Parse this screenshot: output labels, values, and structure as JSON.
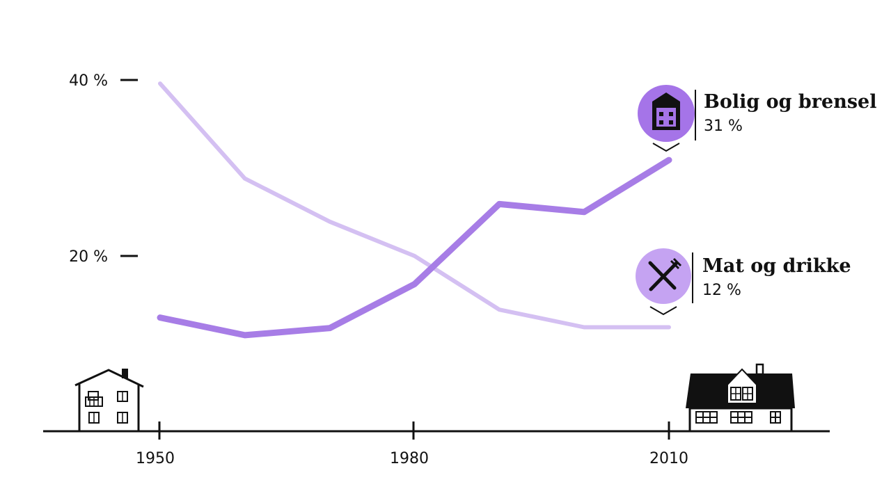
{
  "chart_data": {
    "type": "line",
    "x": [
      1950,
      1960,
      1970,
      1980,
      1990,
      2000,
      2010
    ],
    "xticks": [
      1950,
      1980,
      2010
    ],
    "xtick_labels": [
      "1950",
      "1980",
      "2010"
    ],
    "yticks": [
      20,
      40
    ],
    "ytick_labels": [
      "20 %",
      "40 %"
    ],
    "ylim": [
      0,
      40
    ],
    "series": [
      {
        "name": "Bolig og brensel",
        "value_label": "31 %",
        "values": [
          13.0,
          11.0,
          11.8,
          16.8,
          25.9,
          25.0,
          30.9
        ],
        "color": "#a77de6",
        "icon": "building-icon"
      },
      {
        "name": "Mat og drikke",
        "value_label": "12 %",
        "values": [
          39.6,
          28.8,
          23.9,
          20.0,
          13.9,
          11.9,
          11.9
        ],
        "color": "#d4c0f2",
        "icon": "fork-knife-icon"
      }
    ],
    "grid": false,
    "legend": "inline-right"
  },
  "colors": {
    "series_primary": "#a77de6",
    "series_secondary": "#d4c0f2",
    "badge_primary": "#a574e8",
    "badge_secondary": "#c5a3f2",
    "ink": "#111111"
  },
  "illustrations": {
    "left": "old-house-icon",
    "right": "modern-house-icon"
  }
}
